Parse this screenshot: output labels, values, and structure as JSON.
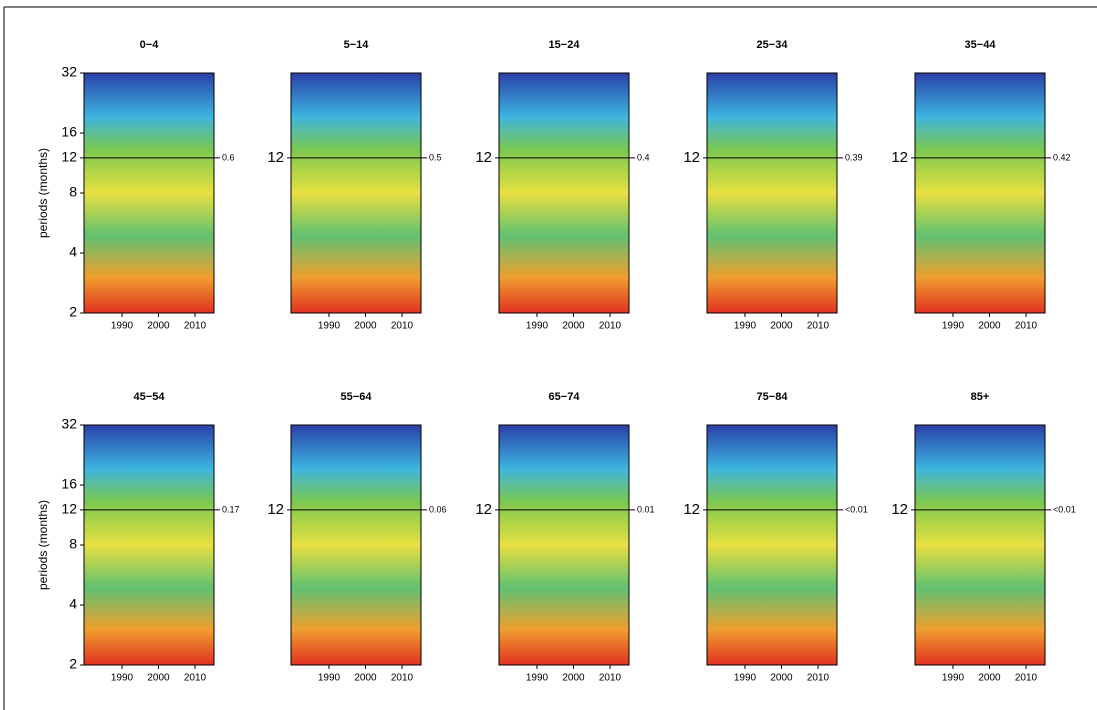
{
  "chart_data": [
    {
      "type": "wavelet",
      "title": "0−4",
      "ylabel": "periods (months)",
      "xlim": [
        1979.6,
        2015.2
      ],
      "xticks": [
        1990,
        2000,
        2010
      ],
      "ylim": [
        2,
        32
      ],
      "log_y": true,
      "yticks": [
        2,
        4,
        8,
        12,
        16,
        32
      ],
      "hline": 12,
      "annotation": "0.6"
    },
    {
      "type": "wavelet",
      "title": "5−14",
      "xlim": [
        1979.6,
        2015.2
      ],
      "xticks": [
        1990,
        2000,
        2010
      ],
      "ylim": [
        2,
        32
      ],
      "log_y": true,
      "yticks": [
        12
      ],
      "hline": 12,
      "annotation": "0.5"
    },
    {
      "type": "wavelet",
      "title": "15−24",
      "xlim": [
        1979.6,
        2015.2
      ],
      "xticks": [
        1990,
        2000,
        2010
      ],
      "ylim": [
        2,
        32
      ],
      "log_y": true,
      "yticks": [
        12
      ],
      "hline": 12,
      "annotation": "0.4"
    },
    {
      "type": "wavelet",
      "title": "25−34",
      "xlim": [
        1979.6,
        2015.2
      ],
      "xticks": [
        1990,
        2000,
        2010
      ],
      "ylim": [
        2,
        32
      ],
      "log_y": true,
      "yticks": [
        12
      ],
      "hline": 12,
      "annotation": "0.39"
    },
    {
      "type": "wavelet",
      "title": "35−44",
      "xlim": [
        1979.6,
        2015.2
      ],
      "xticks": [
        1990,
        2000,
        2010
      ],
      "ylim": [
        2,
        32
      ],
      "log_y": true,
      "yticks": [
        12
      ],
      "hline": 12,
      "annotation": "0.42"
    },
    {
      "type": "wavelet",
      "title": "45−54",
      "ylabel": "periods (months)",
      "xlim": [
        1979.6,
        2015.2
      ],
      "xticks": [
        1990,
        2000,
        2010
      ],
      "ylim": [
        2,
        32
      ],
      "log_y": true,
      "yticks": [
        2,
        4,
        8,
        12,
        16,
        32
      ],
      "hline": 12,
      "annotation": "0.17"
    },
    {
      "type": "wavelet",
      "title": "55−64",
      "xlim": [
        1979.6,
        2015.2
      ],
      "xticks": [
        1990,
        2000,
        2010
      ],
      "ylim": [
        2,
        32
      ],
      "log_y": true,
      "yticks": [
        12
      ],
      "hline": 12,
      "annotation": "0.06"
    },
    {
      "type": "wavelet",
      "title": "65−74",
      "xlim": [
        1979.6,
        2015.2
      ],
      "xticks": [
        1990,
        2000,
        2010
      ],
      "ylim": [
        2,
        32
      ],
      "log_y": true,
      "yticks": [
        12
      ],
      "hline": 12,
      "annotation": "0.01"
    },
    {
      "type": "wavelet",
      "title": "75−84",
      "xlim": [
        1979.6,
        2015.2
      ],
      "xticks": [
        1990,
        2000,
        2010
      ],
      "ylim": [
        2,
        32
      ],
      "log_y": true,
      "yticks": [
        12
      ],
      "hline": 12,
      "annotation": "<0.01"
    },
    {
      "type": "wavelet",
      "title": "85+",
      "xlim": [
        1979.6,
        2015.2
      ],
      "xticks": [
        1990,
        2000,
        2010
      ],
      "ylim": [
        2,
        32
      ],
      "log_y": true,
      "yticks": [
        12
      ],
      "hline": 12,
      "annotation": "<0.01"
    }
  ]
}
